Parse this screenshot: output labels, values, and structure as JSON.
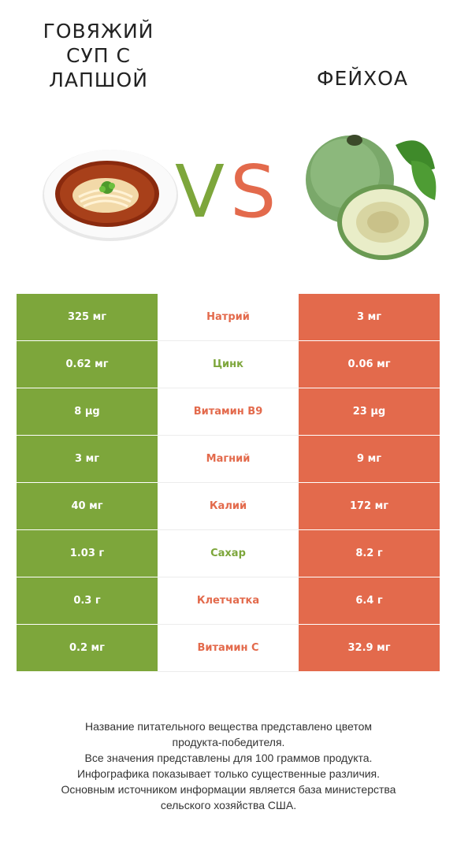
{
  "header": {
    "left_title": "ГОВЯЖИЙ\nСУП С\nЛАПШОЙ",
    "right_title": "ФЕЙХОА",
    "vs_v": "V",
    "vs_s": "S"
  },
  "colors": {
    "left": "#7da63b",
    "right": "#e36a4c"
  },
  "rows": [
    {
      "left": "325 мг",
      "nutrient": "Натрий",
      "right": "3 мг",
      "winner": "right"
    },
    {
      "left": "0.62 мг",
      "nutrient": "Цинк",
      "right": "0.06 мг",
      "winner": "left"
    },
    {
      "left": "8 µg",
      "nutrient": "Витамин B9",
      "right": "23 µg",
      "winner": "right"
    },
    {
      "left": "3 мг",
      "nutrient": "Магний",
      "right": "9 мг",
      "winner": "right"
    },
    {
      "left": "40 мг",
      "nutrient": "Калий",
      "right": "172 мг",
      "winner": "right"
    },
    {
      "left": "1.03 г",
      "nutrient": "Сахар",
      "right": "8.2 г",
      "winner": "left"
    },
    {
      "left": "0.3 г",
      "nutrient": "Клетчатка",
      "right": "6.4 г",
      "winner": "right"
    },
    {
      "left": "0.2 мг",
      "nutrient": "Витамин C",
      "right": "32.9 мг",
      "winner": "right"
    }
  ],
  "footer": {
    "line1": "Название питательного вещества представлено цветом\nпродукта-победителя.",
    "line2": "Все значения представлены для 100 граммов продукта.",
    "line3": "Инфографика показывает только существенные различия.",
    "line4": "Основным источником информации является база министерства\nсельского хозяйства США."
  }
}
